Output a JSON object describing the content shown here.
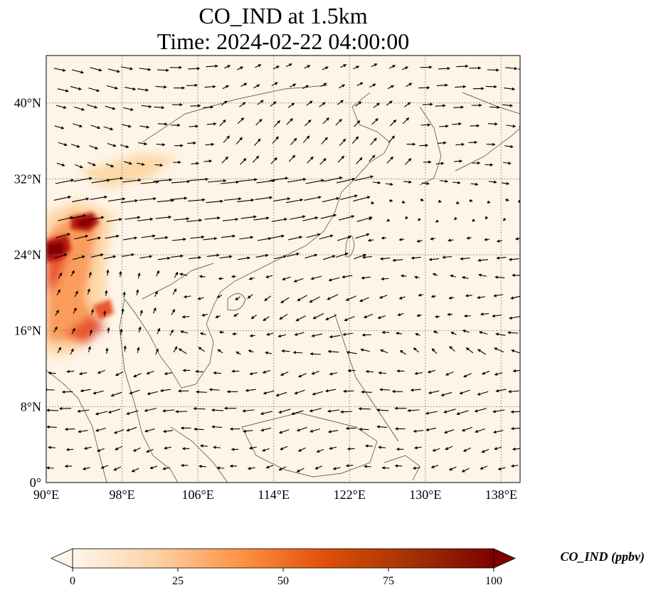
{
  "title": {
    "line1": "CO_IND at 1.5km",
    "line2": "Time: 2024-02-22 04:00:00"
  },
  "map": {
    "lon_range": [
      90,
      140
    ],
    "lat_range": [
      0,
      45
    ],
    "gridlines": true,
    "xticks": [
      {
        "value": 90,
        "label": "90°E"
      },
      {
        "value": 98,
        "label": "98°E"
      },
      {
        "value": 106,
        "label": "106°E"
      },
      {
        "value": 114,
        "label": "114°E"
      },
      {
        "value": 122,
        "label": "122°E"
      },
      {
        "value": 130,
        "label": "130°E"
      },
      {
        "value": 138,
        "label": "138°E"
      }
    ],
    "yticks": [
      {
        "value": 0,
        "label": "0°"
      },
      {
        "value": 8,
        "label": "8°N"
      },
      {
        "value": 16,
        "label": "16°N"
      },
      {
        "value": 24,
        "label": "24°N"
      },
      {
        "value": 32,
        "label": "32°N"
      },
      {
        "value": 40,
        "label": "40°N"
      }
    ],
    "plume_colors": [
      "#fef4e7",
      "#fdd9a9",
      "#fb9c5c",
      "#e9562e",
      "#b5150f",
      "#7f0000"
    ]
  },
  "colorbar": {
    "label": "CO_IND (ppbv)",
    "min": 0,
    "max": 100,
    "extend": "both",
    "ticks": [
      {
        "value": 0,
        "label": "0"
      },
      {
        "value": 25,
        "label": "25"
      },
      {
        "value": 50,
        "label": "50"
      },
      {
        "value": 75,
        "label": "75"
      },
      {
        "value": 100,
        "label": "100"
      }
    ],
    "colors": [
      "#fff5eb",
      "#fdd1a5",
      "#fd9243",
      "#df4f0a",
      "#a43303",
      "#7f0000"
    ]
  }
}
